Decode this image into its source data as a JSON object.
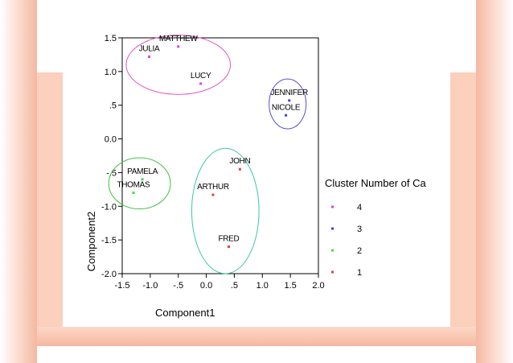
{
  "chart_data": {
    "type": "scatter",
    "title": "",
    "xlabel": "Component1",
    "ylabel": "Component2",
    "xlim": [
      -1.5,
      2.0
    ],
    "ylim": [
      -2.0,
      1.5
    ],
    "x_ticks": [
      {
        "value": -1.5,
        "label": "-1.5"
      },
      {
        "value": -1.0,
        "label": "-1.0"
      },
      {
        "value": -0.5,
        "label": "-.5"
      },
      {
        "value": 0.0,
        "label": "0.0"
      },
      {
        "value": 0.5,
        "label": ".5"
      },
      {
        "value": 1.0,
        "label": "1.0"
      },
      {
        "value": 1.5,
        "label": "1.5"
      },
      {
        "value": 2.0,
        "label": "2.0"
      }
    ],
    "y_ticks": [
      {
        "value": 1.5,
        "label": "1.5"
      },
      {
        "value": 1.0,
        "label": "1.0"
      },
      {
        "value": 0.5,
        "label": ".5"
      },
      {
        "value": 0.0,
        "label": "0.0"
      },
      {
        "value": -0.5,
        "label": "-.5"
      },
      {
        "value": -1.0,
        "label": "-1.0"
      },
      {
        "value": -1.5,
        "label": "-1.5"
      },
      {
        "value": -2.0,
        "label": "-2.0"
      }
    ],
    "grid": false,
    "legend": {
      "title": "Cluster Number of Ca",
      "placement": "right",
      "entries": [
        {
          "label": "4",
          "color": "#e040e0"
        },
        {
          "label": "3",
          "color": "#4040e0"
        },
        {
          "label": "2",
          "color": "#40e040"
        },
        {
          "label": "1",
          "color": "#e04040"
        }
      ]
    },
    "series": [
      {
        "cluster": "4",
        "color": "#e040e0",
        "ring_color": "#e455c8",
        "points": [
          {
            "label": "MATTHEW",
            "x": -0.5,
            "y": 1.37
          },
          {
            "label": "JULIA",
            "x": -1.02,
            "y": 1.22
          },
          {
            "label": "LUCY",
            "x": -0.1,
            "y": 0.82
          }
        ]
      },
      {
        "cluster": "3",
        "color": "#4040e0",
        "ring_color": "#5a50c8",
        "points": [
          {
            "label": "JENNIFER",
            "x": 1.48,
            "y": 0.57
          },
          {
            "label": "NICOLE",
            "x": 1.42,
            "y": 0.35
          }
        ]
      },
      {
        "cluster": "2",
        "color": "#40e040",
        "ring_color": "#44c044",
        "points": [
          {
            "label": "PAMELA",
            "x": -1.14,
            "y": -0.6
          },
          {
            "label": "THOMAS",
            "x": -1.3,
            "y": -0.8
          }
        ]
      },
      {
        "cluster": "1",
        "color": "#e04040",
        "ring_color": "#38c8a8",
        "points": [
          {
            "label": "JOHN",
            "x": 0.6,
            "y": -0.45
          },
          {
            "label": "ARTHUR",
            "x": 0.12,
            "y": -0.83
          },
          {
            "label": "FRED",
            "x": 0.4,
            "y": -1.6
          }
        ]
      }
    ],
    "clusters_outlined": [
      {
        "cluster": "4",
        "color": "#e455c8",
        "cx": -0.5,
        "cy": 1.1,
        "rx": 0.93,
        "ry": 0.44
      },
      {
        "cluster": "3",
        "color": "#5a50c8",
        "cx": 1.45,
        "cy": 0.52,
        "rx": 0.33,
        "ry": 0.37
      },
      {
        "cluster": "2",
        "color": "#44c044",
        "cx": -1.19,
        "cy": -0.66,
        "rx": 0.55,
        "ry": 0.38
      },
      {
        "cluster": "1",
        "color": "#38c8a8",
        "cx": 0.34,
        "cy": -1.07,
        "rx": 0.6,
        "ry": 0.93
      }
    ]
  }
}
